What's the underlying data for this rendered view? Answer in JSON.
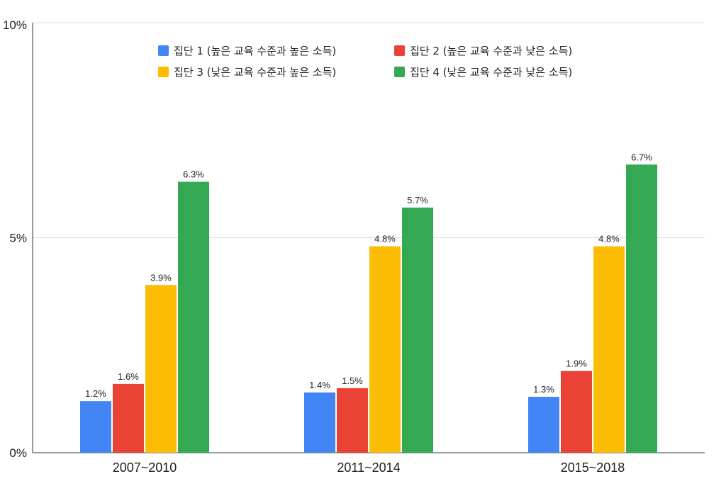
{
  "chart_data": {
    "type": "bar",
    "title": "",
    "xlabel": "",
    "ylabel": "",
    "ylim": [
      0,
      10
    ],
    "y_ticks": [
      {
        "value": 0,
        "label": "0%"
      },
      {
        "value": 5,
        "label": "5%"
      },
      {
        "value": 10,
        "label": "10%"
      }
    ],
    "grid": true,
    "legend_position": "top",
    "categories": [
      "2007~2010",
      "2011~2014",
      "2015~2018"
    ],
    "series": [
      {
        "name": "집단 1 (높은 교육 수준과 높은 소득)",
        "color": "#4285F4",
        "values": [
          1.2,
          1.4,
          1.3
        ],
        "labels": [
          "1.2%",
          "1.4%",
          "1.3%"
        ]
      },
      {
        "name": "집단 2 (높은 교육 수준과 낮은 소득)",
        "color": "#EA4335",
        "values": [
          1.6,
          1.5,
          1.9
        ],
        "labels": [
          "1.6%",
          "1.5%",
          "1.9%"
        ]
      },
      {
        "name": "집단 3 (낮은 교육 수준과 높은 소득)",
        "color": "#FBBC04",
        "values": [
          3.9,
          4.8,
          4.8
        ],
        "labels": [
          "3.9%",
          "4.8%",
          "4.8%"
        ]
      },
      {
        "name": "집단 4 (낮은 교육 수준과 낮은 소득)",
        "color": "#34A853",
        "values": [
          6.3,
          5.7,
          6.7
        ],
        "labels": [
          "6.3%",
          "5.7%",
          "6.7%"
        ]
      }
    ]
  }
}
